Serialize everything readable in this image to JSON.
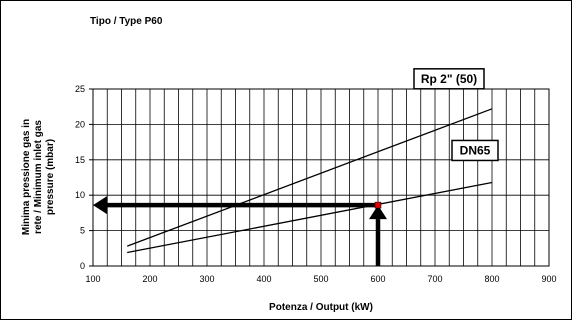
{
  "chart_data": {
    "type": "line",
    "title": "Tipo / Type P60",
    "xlabel": "Potenza / Output (kW)",
    "ylabel": [
      "Minima pressione gas in",
      "rete / Minimum inlet gas",
      "pressure (mbar)"
    ],
    "xlim": [
      100,
      900
    ],
    "ylim": [
      0,
      25
    ],
    "x_ticks": [
      100,
      200,
      300,
      400,
      500,
      600,
      700,
      800,
      900
    ],
    "y_ticks": [
      0,
      5,
      10,
      15,
      20,
      25
    ],
    "grid": true,
    "series": [
      {
        "name": "Rp 2\" (50)",
        "x": [
          160,
          800
        ],
        "y": [
          2.8,
          22.2
        ]
      },
      {
        "name": "DN65",
        "x": [
          160,
          800
        ],
        "y": [
          1.9,
          11.8
        ]
      }
    ],
    "annotations": {
      "point": {
        "x": 600,
        "y": 8.6,
        "color": "#dd0000"
      },
      "arrows": [
        {
          "from": [
            600,
            0
          ],
          "to": [
            600,
            8.6
          ],
          "color": "#000000"
        },
        {
          "from": [
            600,
            8.6
          ],
          "to": [
            100,
            8.6
          ],
          "color": "#000000"
        }
      ]
    }
  }
}
